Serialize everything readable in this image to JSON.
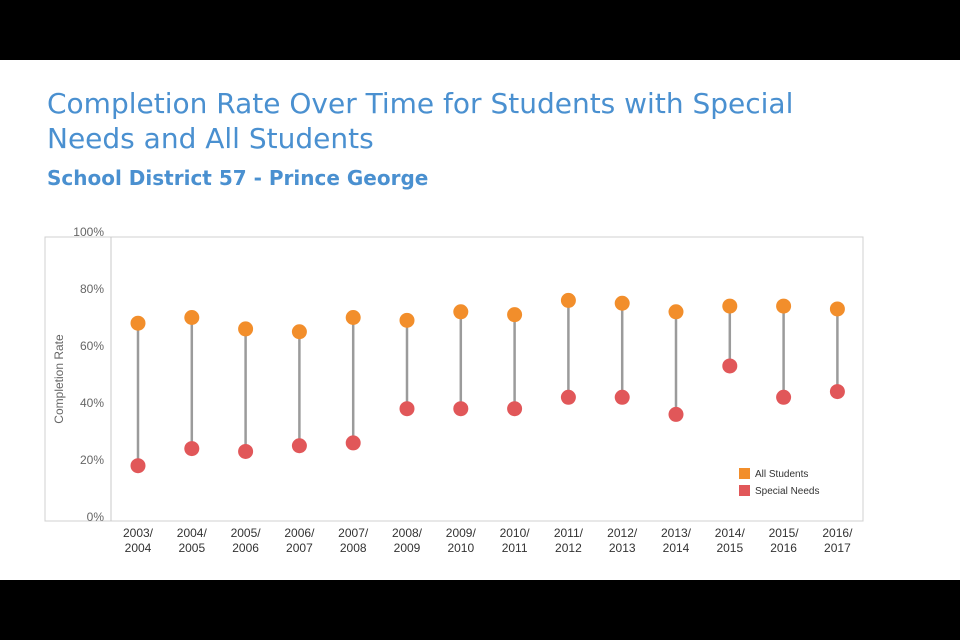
{
  "title": "Completion Rate Over Time for Students with Special Needs and All Students",
  "subtitle": "School District 57 - Prince George",
  "colors": {
    "title": "#4a90d0",
    "all_students": "#f28e2b",
    "special_needs": "#e15759",
    "connector": "#9b9b9b"
  },
  "chart_data": {
    "type": "scatter",
    "style": "dumbbell",
    "ylabel": "Completion Rate",
    "xlabel": "",
    "ylim": [
      0,
      100
    ],
    "y_ticks": [
      "100%",
      "80%",
      "60%",
      "40%",
      "20%",
      "0%"
    ],
    "categories": [
      [
        "2003/",
        "2004"
      ],
      [
        "2004/",
        "2005"
      ],
      [
        "2005/",
        "2006"
      ],
      [
        "2006/",
        "2007"
      ],
      [
        "2007/",
        "2008"
      ],
      [
        "2008/",
        "2009"
      ],
      [
        "2009/",
        "2010"
      ],
      [
        "2010/",
        "2011"
      ],
      [
        "2011/",
        "2012"
      ],
      [
        "2012/",
        "2013"
      ],
      [
        "2013/",
        "2014"
      ],
      [
        "2014/",
        "2015"
      ],
      [
        "2015/",
        "2016"
      ],
      [
        "2016/",
        "2017"
      ]
    ],
    "series": [
      {
        "name": "All Students",
        "color": "#f28e2b",
        "values": [
          68,
          70,
          66,
          65,
          70,
          69,
          72,
          71,
          76,
          75,
          72,
          74,
          74,
          73
        ]
      },
      {
        "name": "Special Needs",
        "color": "#e15759",
        "values": [
          18,
          24,
          23,
          25,
          26,
          38,
          38,
          38,
          42,
          42,
          36,
          53,
          42,
          44
        ]
      }
    ],
    "grid": false,
    "legend_position": "bottom-right"
  }
}
